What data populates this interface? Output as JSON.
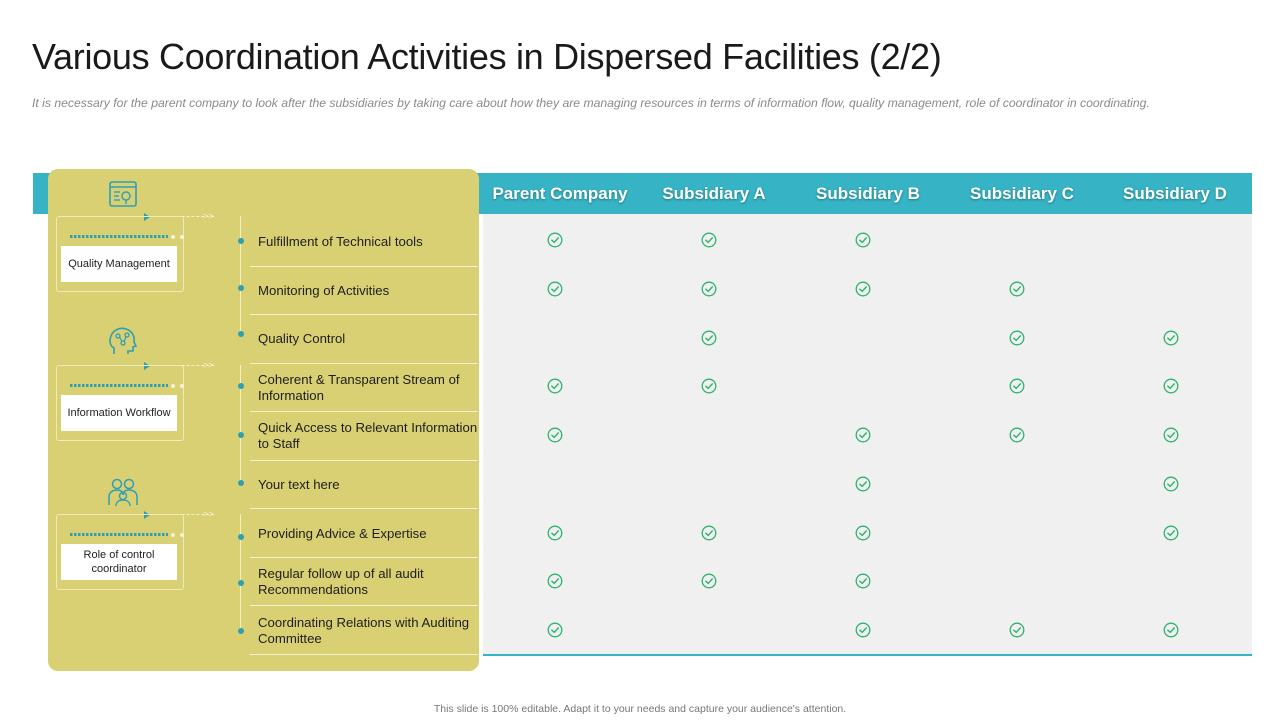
{
  "title": "Various Coordination Activities in Dispersed Facilities (2/2)",
  "subtitle": "It is necessary for the parent company to look after the subsidiaries by taking care about how  they are managing resources in terms of information flow, quality management, role of coordinator in coordinating.",
  "columns": [
    "Parent Company",
    "Subsidiary A",
    "Subsidiary B",
    "Subsidiary C",
    "Subsidiary D"
  ],
  "categories": [
    {
      "label": "Quality Management",
      "icon": "tools-screen-icon"
    },
    {
      "label": "Information Workflow",
      "icon": "head-network-icon"
    },
    {
      "label": "Role of control coordinator",
      "icon": "team-people-icon"
    }
  ],
  "rows": [
    {
      "label": "Fulfillment of Technical tools",
      "checks": [
        true,
        true,
        true,
        false,
        false
      ]
    },
    {
      "label": "Monitoring of Activities",
      "checks": [
        true,
        true,
        true,
        true,
        false
      ]
    },
    {
      "label": "Quality Control",
      "checks": [
        false,
        true,
        false,
        true,
        true
      ]
    },
    {
      "label": "Coherent & Transparent Stream of Information",
      "checks": [
        true,
        true,
        false,
        true,
        true
      ]
    },
    {
      "label": "Quick Access to Relevant Information to Staff",
      "checks": [
        true,
        false,
        true,
        true,
        true
      ]
    },
    {
      "label": "Your text here",
      "checks": [
        false,
        false,
        true,
        false,
        true
      ]
    },
    {
      "label": "Providing Advice & Expertise",
      "checks": [
        true,
        true,
        true,
        false,
        true
      ]
    },
    {
      "label": "Regular follow up of all audit Recommendations",
      "checks": [
        true,
        true,
        true,
        false,
        false
      ]
    },
    {
      "label": "Coordinating Relations with Auditing Committee",
      "checks": [
        true,
        false,
        true,
        true,
        true
      ]
    }
  ],
  "footer": "This slide is 100% editable. Adapt it to your needs and capture your audience's attention.",
  "colors": {
    "header": "#36b3c4",
    "panel": "#d9d073",
    "check": "#2fb36d",
    "grid": "#f0f0f0"
  }
}
